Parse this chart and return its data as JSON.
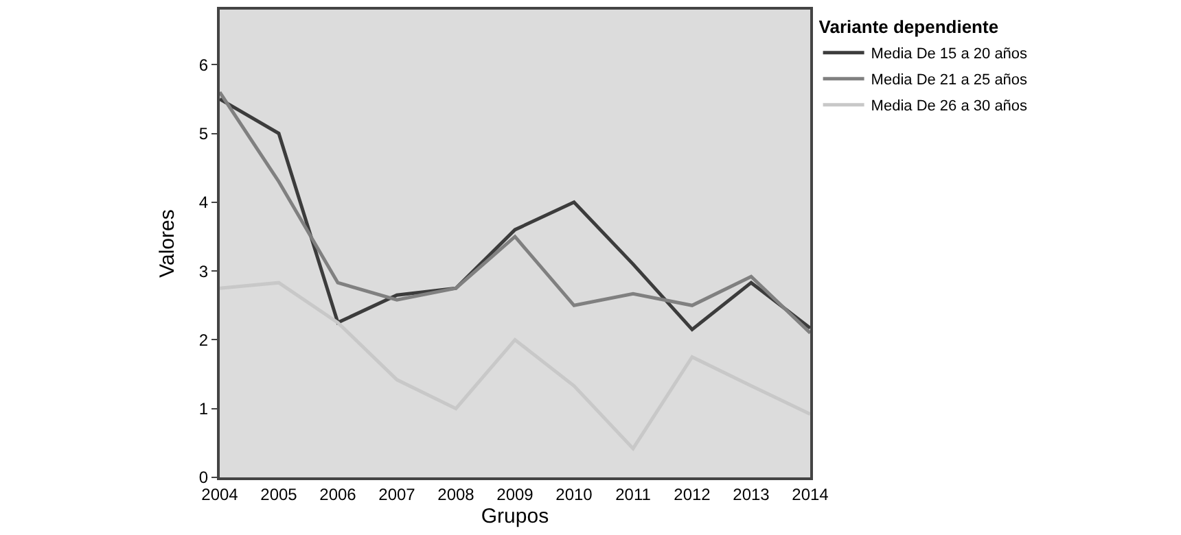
{
  "chart_data": {
    "type": "line",
    "xlabel": "Grupos",
    "ylabel": "Valores",
    "legend_title": "Variante dependiente",
    "categories": [
      "2004",
      "2005",
      "2006",
      "2007",
      "2008",
      "2009",
      "2010",
      "2011",
      "2012",
      "2013",
      "2014"
    ],
    "series": [
      {
        "name": "Media De 15 a 20 años",
        "color": "#3c3c3c",
        "values": [
          5.5,
          5.0,
          2.25,
          2.65,
          2.75,
          3.6,
          4.0,
          3.1,
          2.15,
          2.83,
          2.17
        ]
      },
      {
        "name": "Media De 21 a 25 años",
        "color": "#808080",
        "values": [
          5.6,
          4.3,
          2.83,
          2.58,
          2.75,
          3.5,
          2.5,
          2.67,
          2.5,
          2.92,
          2.1
        ]
      },
      {
        "name": "Media De 26 a 30 años",
        "color": "#c8c8c8",
        "values": [
          2.75,
          2.83,
          2.25,
          1.42,
          1.0,
          2.0,
          1.33,
          0.42,
          1.75,
          1.33,
          0.92
        ]
      }
    ],
    "ylim": [
      0,
      6.8
    ],
    "yticks": [
      0,
      1,
      2,
      3,
      4,
      5,
      6
    ],
    "grid": false,
    "legend": "top right",
    "marker": "none",
    "line_style": "solid"
  }
}
